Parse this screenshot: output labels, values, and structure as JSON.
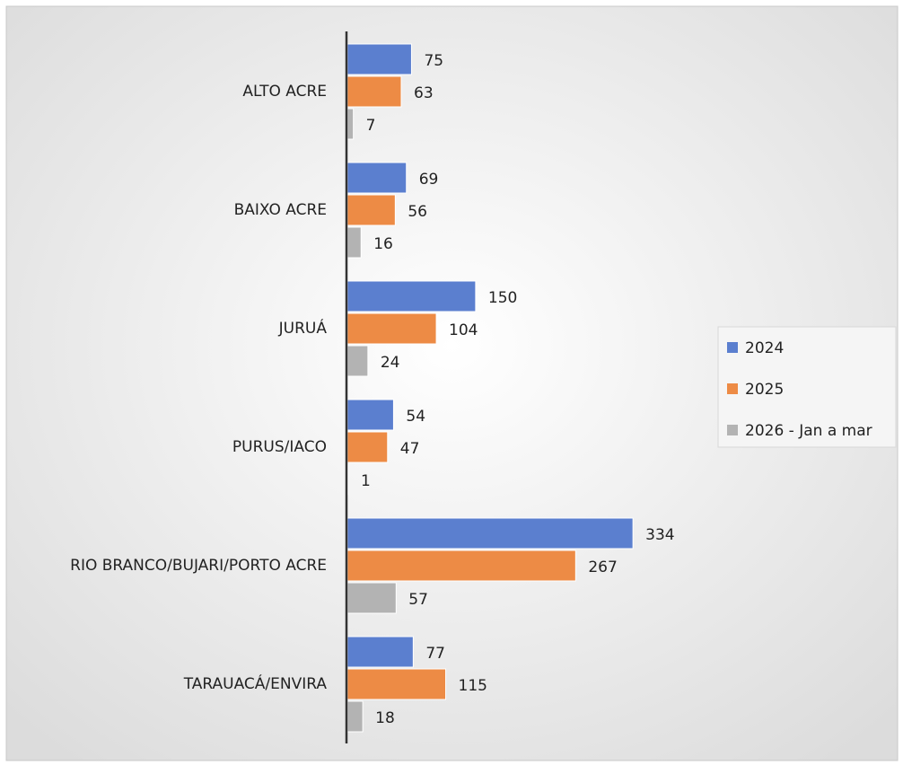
{
  "chart_data": {
    "type": "bar",
    "orientation": "horizontal",
    "categories": [
      "ALTO ACRE",
      "BAIXO ACRE",
      "JURUÁ",
      "PURUS/IACO",
      "RIO BRANCO/BUJARI/PORTO ACRE",
      "TARAUACÁ/ENVIRA"
    ],
    "series": [
      {
        "name": "2024",
        "color": "#5b7fcf",
        "values": [
          75,
          69,
          150,
          54,
          334,
          77
        ]
      },
      {
        "name": "2025",
        "color": "#ed8b45",
        "values": [
          63,
          56,
          104,
          47,
          267,
          115
        ]
      },
      {
        "name": "2026 - Jan a mar",
        "color": "#b3b3b3",
        "values": [
          7,
          16,
          24,
          1,
          57,
          18
        ]
      }
    ],
    "xlim": [
      0,
      400
    ],
    "legend": "right"
  }
}
